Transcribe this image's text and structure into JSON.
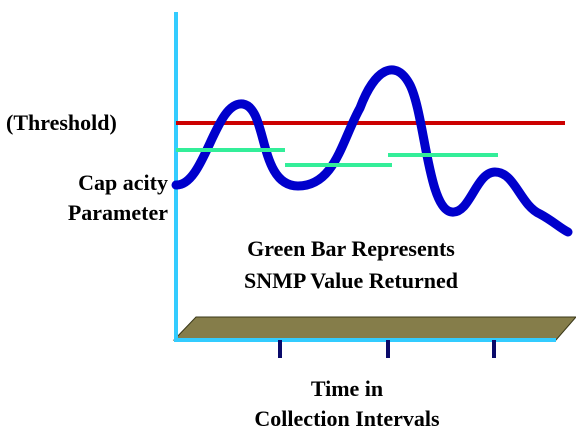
{
  "labels": {
    "threshold": "(Threshold)",
    "capacity_line1": "Cap acity",
    "capacity_line2": "Parameter",
    "legend_line1": "Green Bar Represents",
    "legend_line2": "SNMP Value Returned",
    "axis_line1": "Time in",
    "axis_line2": "Collection Intervals"
  },
  "colors": {
    "axis": "#33ccff",
    "curve": "#0000cc",
    "threshold": "#cc0000",
    "snmp_bar": "#33ee99",
    "ground_top": "#857d4a",
    "ground_edge": "#3a3818",
    "tick": "#0a0a6a"
  },
  "snmp_values": [
    {
      "interval": 1,
      "level": "above-start"
    },
    {
      "interval": 2,
      "level": "lowest"
    },
    {
      "interval": 3,
      "level": "middle"
    }
  ]
}
